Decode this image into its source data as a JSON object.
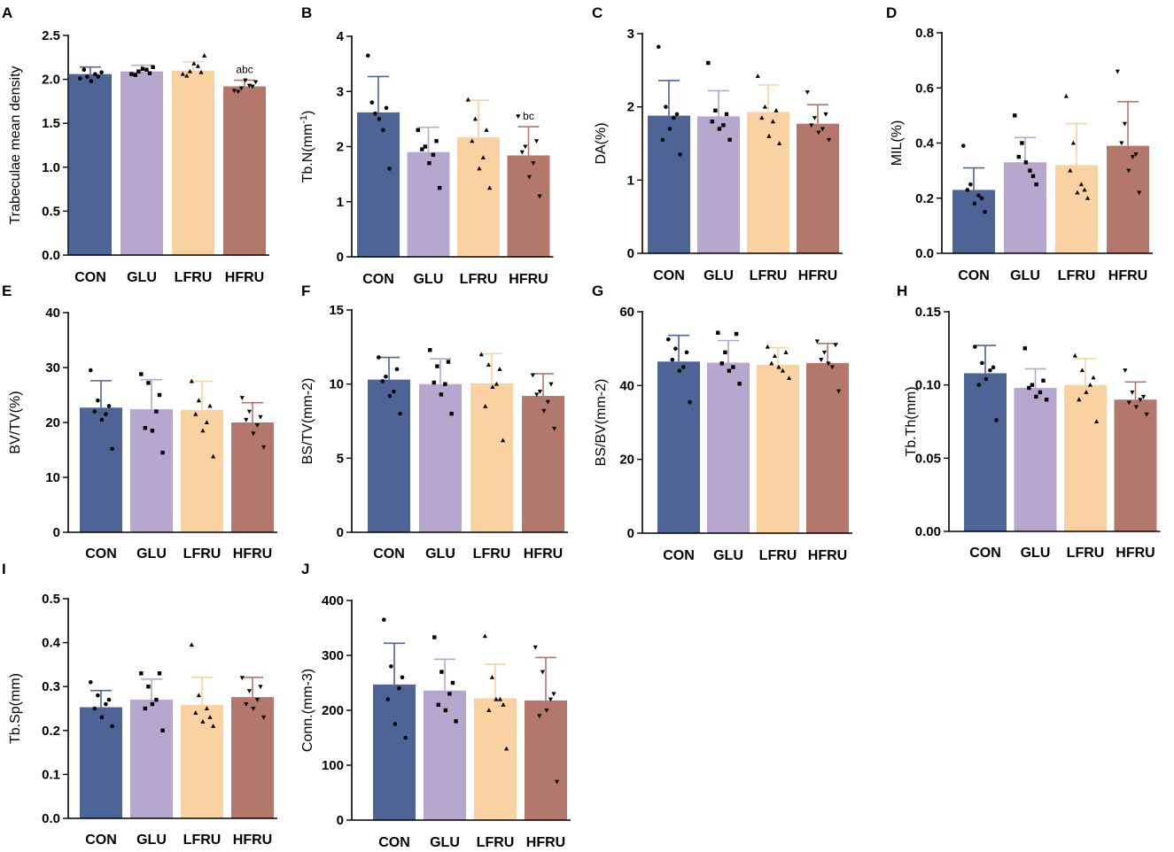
{
  "colors": {
    "CON": "#4f6496",
    "GLU": "#b5a7cd",
    "LFRU": "#fad1a0",
    "HFRU": "#b4776b"
  },
  "chart_data": [
    {
      "panel": "A",
      "type": "bar",
      "ylabel": "Trabeculae mean density",
      "ylabel_sup": "",
      "ylabel_post": "",
      "categories": [
        "CON",
        "GLU",
        "LFRU",
        "HFRU"
      ],
      "ylim": [
        0,
        2.5
      ],
      "ticks": [
        {
          "v": 0,
          "t": "0.0"
        },
        {
          "v": 0.5,
          "t": "0.5"
        },
        {
          "v": 1,
          "t": "1.0"
        },
        {
          "v": 1.5,
          "t": "1.5"
        },
        {
          "v": 2,
          "t": "2.0"
        },
        {
          "v": 2.5,
          "t": "2.5"
        }
      ],
      "values": [
        2.06,
        2.09,
        2.1,
        1.92
      ],
      "errors": [
        0.08,
        0.07,
        0.1,
        0.07
      ],
      "points": [
        [
          2.01,
          2.03,
          2.06,
          2.08,
          2.11,
          2.03,
          1.98
        ],
        [
          2.06,
          2.09,
          2.11,
          2.14,
          2.05,
          2.07,
          2.12
        ],
        [
          2.06,
          2.09,
          2.15,
          2.27,
          2.04,
          2.08,
          2.18
        ],
        [
          1.87,
          1.9,
          1.93,
          1.97,
          1.86,
          1.92,
          1.99
        ]
      ],
      "annotations": [
        "",
        "",
        "",
        "abc"
      ]
    },
    {
      "panel": "B",
      "type": "bar",
      "ylabel": "Tb.N(mm",
      "ylabel_sup": "-1",
      "ylabel_post": ")",
      "categories": [
        "CON",
        "GLU",
        "LFRU",
        "HFRU"
      ],
      "ylim": [
        0,
        4
      ],
      "ticks": [
        {
          "v": 0,
          "t": "0"
        },
        {
          "v": 1,
          "t": "1"
        },
        {
          "v": 2,
          "t": "2"
        },
        {
          "v": 3,
          "t": "3"
        },
        {
          "v": 4,
          "t": "4"
        }
      ],
      "values": [
        2.62,
        1.9,
        2.17,
        1.84
      ],
      "errors": [
        0.65,
        0.45,
        0.67,
        0.52
      ],
      "points": [
        [
          3.65,
          2.6,
          2.3,
          1.6,
          2.8,
          2.7,
          2.5
        ],
        [
          2.3,
          2.0,
          1.85,
          1.25,
          1.95,
          2.1,
          1.7
        ],
        [
          2.85,
          2.5,
          1.8,
          1.25,
          2.1,
          2.3,
          1.6
        ],
        [
          2.55,
          2.0,
          1.7,
          1.1,
          1.9,
          2.1,
          1.45
        ]
      ],
      "annotations": [
        "",
        "",
        "",
        "bc"
      ]
    },
    {
      "panel": "C",
      "type": "bar",
      "ylabel": "DA(%)",
      "ylabel_sup": "",
      "ylabel_post": "",
      "categories": [
        "CON",
        "GLU",
        "LFRU",
        "HFRU"
      ],
      "ylim": [
        0,
        3
      ],
      "ticks": [
        {
          "v": 0,
          "t": "0"
        },
        {
          "v": 1,
          "t": "1"
        },
        {
          "v": 2,
          "t": "2"
        },
        {
          "v": 3,
          "t": "3"
        }
      ],
      "values": [
        1.88,
        1.87,
        1.93,
        1.77
      ],
      "errors": [
        0.48,
        0.35,
        0.37,
        0.26
      ],
      "points": [
        [
          2.82,
          2.0,
          1.85,
          1.35,
          1.55,
          1.9,
          1.7
        ],
        [
          2.6,
          1.95,
          1.75,
          1.55,
          1.8,
          1.9,
          1.7
        ],
        [
          2.42,
          2.0,
          1.8,
          1.5,
          1.85,
          1.95,
          1.6
        ],
        [
          2.2,
          1.85,
          1.7,
          1.55,
          1.75,
          1.9,
          1.65
        ]
      ],
      "annotations": [
        "",
        "",
        "",
        ""
      ]
    },
    {
      "panel": "D",
      "type": "bar",
      "ylabel": "MIL(%)",
      "ylabel_sup": "",
      "ylabel_post": "",
      "categories": [
        "CON",
        "GLU",
        "LFRU",
        "HFRU"
      ],
      "ylim": [
        0,
        0.8
      ],
      "ticks": [
        {
          "v": 0,
          "t": "0.0"
        },
        {
          "v": 0.2,
          "t": "0.2"
        },
        {
          "v": 0.4,
          "t": "0.4"
        },
        {
          "v": 0.6,
          "t": "0.6"
        },
        {
          "v": 0.8,
          "t": "0.8"
        }
      ],
      "values": [
        0.23,
        0.33,
        0.32,
        0.39
      ],
      "errors": [
        0.08,
        0.09,
        0.15,
        0.16
      ],
      "points": [
        [
          0.39,
          0.25,
          0.21,
          0.15,
          0.23,
          0.2,
          0.18
        ],
        [
          0.5,
          0.4,
          0.3,
          0.25,
          0.35,
          0.28,
          0.33
        ],
        [
          0.57,
          0.4,
          0.25,
          0.2,
          0.3,
          0.23,
          0.22
        ],
        [
          0.66,
          0.47,
          0.35,
          0.22,
          0.4,
          0.36,
          0.3
        ]
      ],
      "annotations": [
        "",
        "",
        "",
        ""
      ]
    },
    {
      "panel": "E",
      "type": "bar",
      "ylabel": "BV/TV(%)",
      "ylabel_sup": "",
      "ylabel_post": "",
      "categories": [
        "CON",
        "GLU",
        "LFRU",
        "HFRU"
      ],
      "ylim": [
        0,
        40
      ],
      "ticks": [
        {
          "v": 0,
          "t": "0"
        },
        {
          "v": 10,
          "t": "10"
        },
        {
          "v": 20,
          "t": "20"
        },
        {
          "v": 30,
          "t": "30"
        },
        {
          "v": 40,
          "t": "40"
        }
      ],
      "values": [
        22.7,
        22.4,
        22.3,
        20.0
      ],
      "errors": [
        4.9,
        5.4,
        5.2,
        3.6
      ],
      "points": [
        [
          29.5,
          24,
          21.5,
          15.2,
          22,
          23,
          20.5
        ],
        [
          28.8,
          27.2,
          22,
          14.5,
          19,
          25,
          18.5
        ],
        [
          27.5,
          24,
          20,
          13.8,
          21.5,
          23,
          18.5
        ],
        [
          24.5,
          22,
          19.5,
          15.5,
          20.5,
          21,
          18
        ]
      ],
      "annotations": [
        "",
        "",
        "",
        ""
      ]
    },
    {
      "panel": "F",
      "type": "bar",
      "ylabel": "BS/TV(mm-2)",
      "ylabel_sup": "",
      "ylabel_post": "",
      "categories": [
        "CON",
        "GLU",
        "LFRU",
        "HFRU"
      ],
      "ylim": [
        0,
        15
      ],
      "ticks": [
        {
          "v": 0,
          "t": "0"
        },
        {
          "v": 5,
          "t": "5"
        },
        {
          "v": 10,
          "t": "10"
        },
        {
          "v": 15,
          "t": "15"
        }
      ],
      "values": [
        10.3,
        10.0,
        10.05,
        9.2
      ],
      "errors": [
        1.5,
        1.7,
        2.0,
        1.5
      ],
      "points": [
        [
          11.8,
          10.5,
          9.5,
          8.0,
          10.2,
          11,
          9.2
        ],
        [
          12.3,
          11.2,
          10,
          8.0,
          10.1,
          11.5,
          9.3
        ],
        [
          12.0,
          11.3,
          10,
          6.2,
          8.5,
          11,
          9.8
        ],
        [
          10.6,
          9.5,
          8.8,
          7.0,
          9.3,
          10.0,
          8.2
        ]
      ],
      "annotations": [
        "",
        "",
        "",
        ""
      ]
    },
    {
      "panel": "G",
      "type": "bar",
      "ylabel": "BS/BV(mm-2)",
      "ylabel_sup": "",
      "ylabel_post": "",
      "categories": [
        "CON",
        "GLU",
        "LFRU",
        "HFRU"
      ],
      "ylim": [
        0,
        60
      ],
      "ticks": [
        {
          "v": 0,
          "t": "0"
        },
        {
          "v": 20,
          "t": "20"
        },
        {
          "v": 40,
          "t": "40"
        },
        {
          "v": 60,
          "t": "60"
        }
      ],
      "values": [
        46.5,
        46.2,
        45.6,
        46.1
      ],
      "errors": [
        7.1,
        6.0,
        4.7,
        5.3
      ],
      "points": [
        [
          52.5,
          50,
          45,
          35.5,
          47,
          49,
          44
        ],
        [
          54.3,
          49,
          45,
          40.5,
          46,
          54,
          44
        ],
        [
          50.5,
          48,
          44,
          42,
          46,
          49,
          45
        ],
        [
          52,
          49,
          45,
          38.5,
          47,
          51,
          46
        ]
      ],
      "annotations": [
        "",
        "",
        "",
        ""
      ]
    },
    {
      "panel": "H",
      "type": "bar",
      "ylabel": "Tb.Th(mm)",
      "ylabel_sup": "",
      "ylabel_post": "",
      "categories": [
        "CON",
        "GLU",
        "LFRU",
        "HFRU"
      ],
      "ylim": [
        0,
        0.15
      ],
      "ticks": [
        {
          "v": 0,
          "t": "0.00"
        },
        {
          "v": 0.05,
          "t": "0.05"
        },
        {
          "v": 0.1,
          "t": "0.10"
        },
        {
          "v": 0.15,
          "t": "0.15"
        }
      ],
      "values": [
        0.108,
        0.098,
        0.1,
        0.09
      ],
      "errors": [
        0.019,
        0.013,
        0.018,
        0.012
      ],
      "points": [
        [
          0.126,
          0.115,
          0.11,
          0.076,
          0.1,
          0.112,
          0.104
        ],
        [
          0.125,
          0.1,
          0.095,
          0.09,
          0.098,
          0.103,
          0.092
        ],
        [
          0.12,
          0.11,
          0.1,
          0.075,
          0.09,
          0.105,
          0.095
        ],
        [
          0.11,
          0.095,
          0.09,
          0.08,
          0.088,
          0.092,
          0.085
        ]
      ],
      "annotations": [
        "",
        "",
        "",
        ""
      ]
    },
    {
      "panel": "I",
      "type": "bar",
      "ylabel": "Tb.Sp(mm)",
      "ylabel_sup": "",
      "ylabel_post": "",
      "categories": [
        "CON",
        "GLU",
        "LFRU",
        "HFRU"
      ],
      "ylim": [
        0,
        0.5
      ],
      "ticks": [
        {
          "v": 0,
          "t": "0.0"
        },
        {
          "v": 0.1,
          "t": "0.1"
        },
        {
          "v": 0.2,
          "t": "0.2"
        },
        {
          "v": 0.3,
          "t": "0.3"
        },
        {
          "v": 0.4,
          "t": "0.4"
        },
        {
          "v": 0.5,
          "t": "0.5"
        }
      ],
      "values": [
        0.253,
        0.27,
        0.258,
        0.276
      ],
      "errors": [
        0.038,
        0.047,
        0.063,
        0.045
      ],
      "points": [
        [
          0.31,
          0.28,
          0.26,
          0.21,
          0.25,
          0.27,
          0.23
        ],
        [
          0.33,
          0.3,
          0.27,
          0.2,
          0.25,
          0.33,
          0.26
        ],
        [
          0.395,
          0.28,
          0.25,
          0.21,
          0.24,
          0.23,
          0.22
        ],
        [
          0.32,
          0.29,
          0.27,
          0.23,
          0.26,
          0.3,
          0.25
        ]
      ],
      "annotations": [
        "",
        "",
        "",
        ""
      ]
    },
    {
      "panel": "J",
      "type": "bar",
      "ylabel": "Conn.(mm-3)",
      "ylabel_sup": "",
      "ylabel_post": "",
      "categories": [
        "CON",
        "GLU",
        "LFRU",
        "HFRU"
      ],
      "ylim": [
        0,
        400
      ],
      "ticks": [
        {
          "v": 0,
          "t": "0"
        },
        {
          "v": 100,
          "t": "100"
        },
        {
          "v": 200,
          "t": "200"
        },
        {
          "v": 300,
          "t": "300"
        },
        {
          "v": 400,
          "t": "400"
        }
      ],
      "values": [
        247,
        236,
        222,
        218
      ],
      "errors": [
        75,
        57,
        62,
        78
      ],
      "points": [
        [
          365,
          280,
          240,
          150,
          220,
          260,
          175
        ],
        [
          333,
          270,
          230,
          180,
          210,
          250,
          200
        ],
        [
          335,
          260,
          220,
          130,
          200,
          210,
          220
        ],
        [
          315,
          270,
          220,
          70,
          190,
          230,
          200
        ]
      ],
      "annotations": [
        "",
        "",
        "",
        ""
      ]
    }
  ]
}
